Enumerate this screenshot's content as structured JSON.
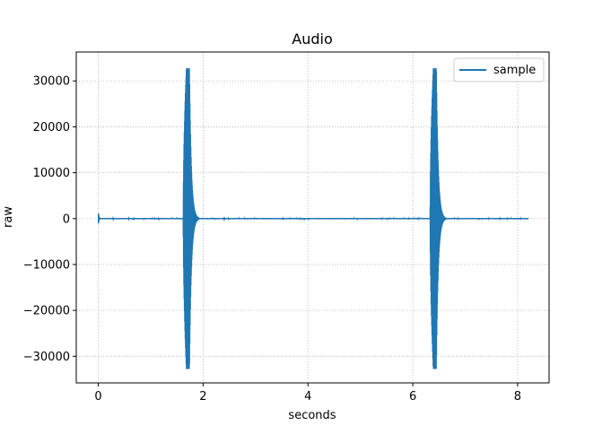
{
  "chart_data": {
    "type": "line",
    "title": "Audio",
    "xlabel": "seconds",
    "ylabel": "raw",
    "xlim": [
      -0.42,
      8.6
    ],
    "ylim": [
      -35800,
      36300
    ],
    "xticks": [
      0,
      2,
      4,
      6,
      8
    ],
    "yticks": [
      -30000,
      -20000,
      -10000,
      0,
      10000,
      20000,
      30000
    ],
    "xtick_labels": [
      "0",
      "2",
      "4",
      "6",
      "8"
    ],
    "ytick_labels": [
      "−30000",
      "−20000",
      "−10000",
      "0",
      "10000",
      "20000",
      "30000"
    ],
    "grid": true,
    "legend_position": "top-right",
    "series": [
      {
        "name": "sample",
        "color": "#1f77b4",
        "duration": 8.2,
        "peak": 32767,
        "initial_click": {
          "t": 0.0,
          "amplitude": 1200
        },
        "bursts": [
          {
            "start": 1.62,
            "peak_time": 1.68,
            "end": 1.95,
            "amplitude": 32767
          },
          {
            "start": 6.33,
            "peak_time": 6.39,
            "end": 6.68,
            "amplitude": 32767
          }
        ],
        "baseline_noise": 150
      }
    ]
  }
}
